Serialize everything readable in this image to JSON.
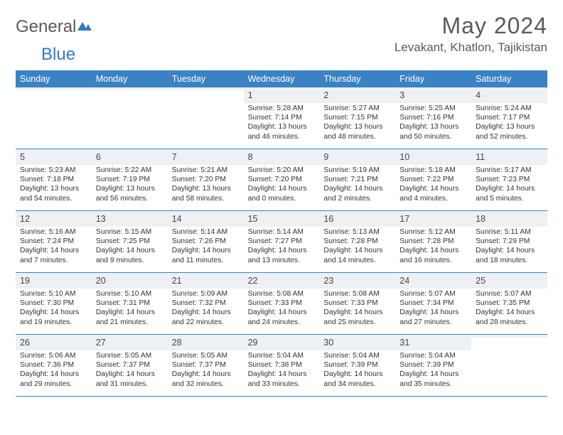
{
  "brand": {
    "part1": "General",
    "part2": "Blue"
  },
  "title": "May 2024",
  "location": "Levakant, Khatlon, Tajikistan",
  "colors": {
    "header_bg": "#3b82c4",
    "header_text": "#ffffff",
    "daynum_bg": "#eef1f4",
    "border": "#3b82c4",
    "text": "#333333",
    "brand_grey": "#5a5a5a",
    "brand_blue": "#2f78c4",
    "page_bg": "#ffffff"
  },
  "dow": [
    "Sunday",
    "Monday",
    "Tuesday",
    "Wednesday",
    "Thursday",
    "Friday",
    "Saturday"
  ],
  "weeks": [
    [
      {
        "n": "",
        "sr": "",
        "ss": "",
        "dl": ""
      },
      {
        "n": "",
        "sr": "",
        "ss": "",
        "dl": ""
      },
      {
        "n": "",
        "sr": "",
        "ss": "",
        "dl": ""
      },
      {
        "n": "1",
        "sr": "Sunrise: 5:28 AM",
        "ss": "Sunset: 7:14 PM",
        "dl": "Daylight: 13 hours and 46 minutes."
      },
      {
        "n": "2",
        "sr": "Sunrise: 5:27 AM",
        "ss": "Sunset: 7:15 PM",
        "dl": "Daylight: 13 hours and 48 minutes."
      },
      {
        "n": "3",
        "sr": "Sunrise: 5:25 AM",
        "ss": "Sunset: 7:16 PM",
        "dl": "Daylight: 13 hours and 50 minutes."
      },
      {
        "n": "4",
        "sr": "Sunrise: 5:24 AM",
        "ss": "Sunset: 7:17 PM",
        "dl": "Daylight: 13 hours and 52 minutes."
      }
    ],
    [
      {
        "n": "5",
        "sr": "Sunrise: 5:23 AM",
        "ss": "Sunset: 7:18 PM",
        "dl": "Daylight: 13 hours and 54 minutes."
      },
      {
        "n": "6",
        "sr": "Sunrise: 5:22 AM",
        "ss": "Sunset: 7:19 PM",
        "dl": "Daylight: 13 hours and 56 minutes."
      },
      {
        "n": "7",
        "sr": "Sunrise: 5:21 AM",
        "ss": "Sunset: 7:20 PM",
        "dl": "Daylight: 13 hours and 58 minutes."
      },
      {
        "n": "8",
        "sr": "Sunrise: 5:20 AM",
        "ss": "Sunset: 7:20 PM",
        "dl": "Daylight: 14 hours and 0 minutes."
      },
      {
        "n": "9",
        "sr": "Sunrise: 5:19 AM",
        "ss": "Sunset: 7:21 PM",
        "dl": "Daylight: 14 hours and 2 minutes."
      },
      {
        "n": "10",
        "sr": "Sunrise: 5:18 AM",
        "ss": "Sunset: 7:22 PM",
        "dl": "Daylight: 14 hours and 4 minutes."
      },
      {
        "n": "11",
        "sr": "Sunrise: 5:17 AM",
        "ss": "Sunset: 7:23 PM",
        "dl": "Daylight: 14 hours and 5 minutes."
      }
    ],
    [
      {
        "n": "12",
        "sr": "Sunrise: 5:16 AM",
        "ss": "Sunset: 7:24 PM",
        "dl": "Daylight: 14 hours and 7 minutes."
      },
      {
        "n": "13",
        "sr": "Sunrise: 5:15 AM",
        "ss": "Sunset: 7:25 PM",
        "dl": "Daylight: 14 hours and 9 minutes."
      },
      {
        "n": "14",
        "sr": "Sunrise: 5:14 AM",
        "ss": "Sunset: 7:26 PM",
        "dl": "Daylight: 14 hours and 11 minutes."
      },
      {
        "n": "15",
        "sr": "Sunrise: 5:14 AM",
        "ss": "Sunset: 7:27 PM",
        "dl": "Daylight: 14 hours and 13 minutes."
      },
      {
        "n": "16",
        "sr": "Sunrise: 5:13 AM",
        "ss": "Sunset: 7:28 PM",
        "dl": "Daylight: 14 hours and 14 minutes."
      },
      {
        "n": "17",
        "sr": "Sunrise: 5:12 AM",
        "ss": "Sunset: 7:28 PM",
        "dl": "Daylight: 14 hours and 16 minutes."
      },
      {
        "n": "18",
        "sr": "Sunrise: 5:11 AM",
        "ss": "Sunset: 7:29 PM",
        "dl": "Daylight: 14 hours and 18 minutes."
      }
    ],
    [
      {
        "n": "19",
        "sr": "Sunrise: 5:10 AM",
        "ss": "Sunset: 7:30 PM",
        "dl": "Daylight: 14 hours and 19 minutes."
      },
      {
        "n": "20",
        "sr": "Sunrise: 5:10 AM",
        "ss": "Sunset: 7:31 PM",
        "dl": "Daylight: 14 hours and 21 minutes."
      },
      {
        "n": "21",
        "sr": "Sunrise: 5:09 AM",
        "ss": "Sunset: 7:32 PM",
        "dl": "Daylight: 14 hours and 22 minutes."
      },
      {
        "n": "22",
        "sr": "Sunrise: 5:08 AM",
        "ss": "Sunset: 7:33 PM",
        "dl": "Daylight: 14 hours and 24 minutes."
      },
      {
        "n": "23",
        "sr": "Sunrise: 5:08 AM",
        "ss": "Sunset: 7:33 PM",
        "dl": "Daylight: 14 hours and 25 minutes."
      },
      {
        "n": "24",
        "sr": "Sunrise: 5:07 AM",
        "ss": "Sunset: 7:34 PM",
        "dl": "Daylight: 14 hours and 27 minutes."
      },
      {
        "n": "25",
        "sr": "Sunrise: 5:07 AM",
        "ss": "Sunset: 7:35 PM",
        "dl": "Daylight: 14 hours and 28 minutes."
      }
    ],
    [
      {
        "n": "26",
        "sr": "Sunrise: 5:06 AM",
        "ss": "Sunset: 7:36 PM",
        "dl": "Daylight: 14 hours and 29 minutes."
      },
      {
        "n": "27",
        "sr": "Sunrise: 5:05 AM",
        "ss": "Sunset: 7:37 PM",
        "dl": "Daylight: 14 hours and 31 minutes."
      },
      {
        "n": "28",
        "sr": "Sunrise: 5:05 AM",
        "ss": "Sunset: 7:37 PM",
        "dl": "Daylight: 14 hours and 32 minutes."
      },
      {
        "n": "29",
        "sr": "Sunrise: 5:04 AM",
        "ss": "Sunset: 7:38 PM",
        "dl": "Daylight: 14 hours and 33 minutes."
      },
      {
        "n": "30",
        "sr": "Sunrise: 5:04 AM",
        "ss": "Sunset: 7:39 PM",
        "dl": "Daylight: 14 hours and 34 minutes."
      },
      {
        "n": "31",
        "sr": "Sunrise: 5:04 AM",
        "ss": "Sunset: 7:39 PM",
        "dl": "Daylight: 14 hours and 35 minutes."
      },
      {
        "n": "",
        "sr": "",
        "ss": "",
        "dl": ""
      }
    ]
  ]
}
